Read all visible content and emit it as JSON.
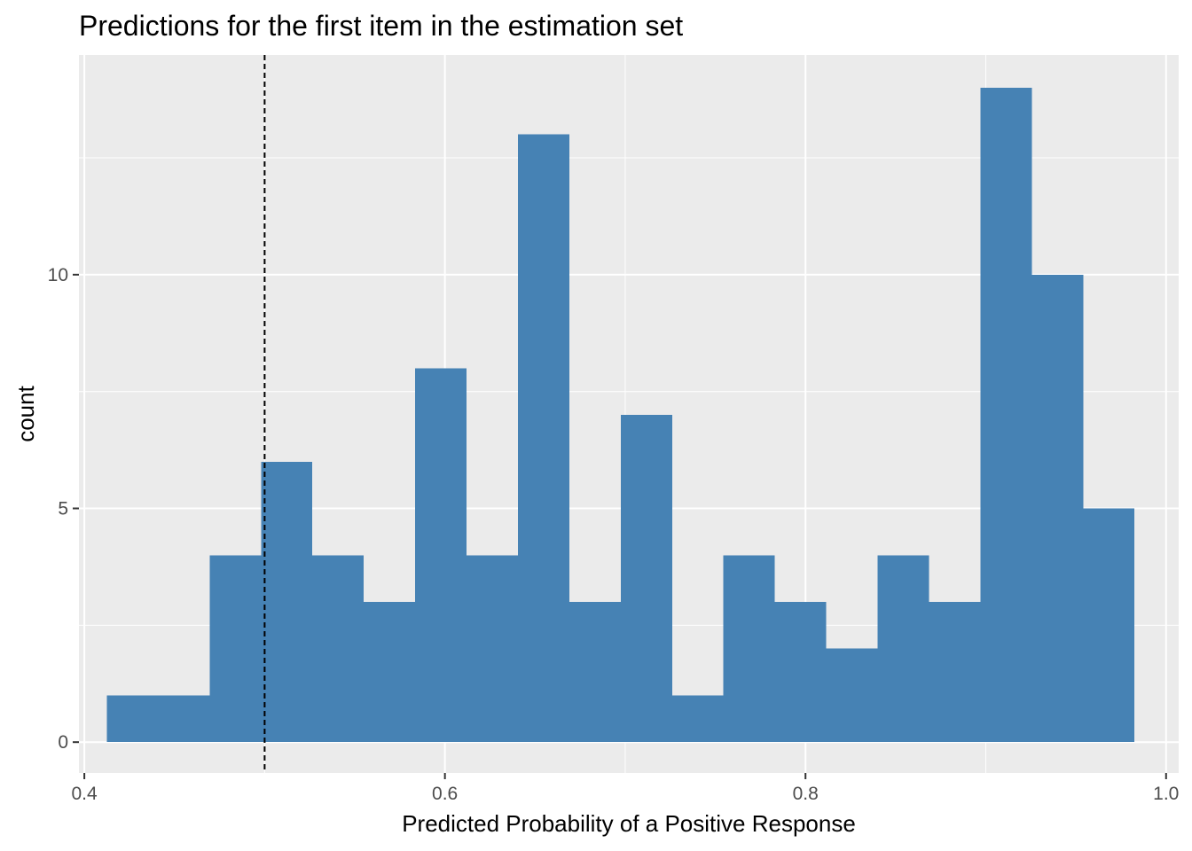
{
  "chart_data": {
    "type": "bar",
    "title": "Predictions for the first item in the estimation set",
    "xlabel": "Predicted Probability of a Positive Response",
    "ylabel": "count",
    "xlim": [
      0.397,
      1.007
    ],
    "ylim": [
      -0.66,
      14.7
    ],
    "x_ticks": [
      0.4,
      0.6,
      0.8,
      1.0
    ],
    "x_tick_labels": [
      "0.4",
      "0.6",
      "0.8",
      "1.0"
    ],
    "y_ticks": [
      0,
      5,
      10
    ],
    "y_tick_labels": [
      "0",
      "5",
      "10"
    ],
    "bins": [
      {
        "x0": 0.4125,
        "x1": 0.441,
        "count": 1
      },
      {
        "x0": 0.441,
        "x1": 0.4695,
        "count": 1
      },
      {
        "x0": 0.4695,
        "x1": 0.498,
        "count": 4
      },
      {
        "x0": 0.498,
        "x1": 0.5265,
        "count": 6
      },
      {
        "x0": 0.5265,
        "x1": 0.555,
        "count": 4
      },
      {
        "x0": 0.555,
        "x1": 0.5835,
        "count": 3
      },
      {
        "x0": 0.5835,
        "x1": 0.612,
        "count": 8
      },
      {
        "x0": 0.612,
        "x1": 0.6405,
        "count": 4
      },
      {
        "x0": 0.6405,
        "x1": 0.669,
        "count": 13
      },
      {
        "x0": 0.669,
        "x1": 0.6975,
        "count": 3
      },
      {
        "x0": 0.6975,
        "x1": 0.726,
        "count": 7
      },
      {
        "x0": 0.726,
        "x1": 0.7545,
        "count": 1
      },
      {
        "x0": 0.7545,
        "x1": 0.783,
        "count": 4
      },
      {
        "x0": 0.783,
        "x1": 0.8115,
        "count": 3
      },
      {
        "x0": 0.8115,
        "x1": 0.84,
        "count": 2
      },
      {
        "x0": 0.84,
        "x1": 0.8685,
        "count": 4
      },
      {
        "x0": 0.8685,
        "x1": 0.897,
        "count": 3
      },
      {
        "x0": 0.897,
        "x1": 0.9255,
        "count": 14
      },
      {
        "x0": 0.9255,
        "x1": 0.954,
        "count": 10
      },
      {
        "x0": 0.954,
        "x1": 0.9825,
        "count": 5
      }
    ],
    "reference_line": {
      "x": 0.5,
      "style": "dashed"
    },
    "grid": true,
    "legend": "none",
    "colors": {
      "bar": "#4682b4",
      "panel_background": "#ebebeb",
      "grid": "#ffffff",
      "reference_line": "#000000"
    }
  }
}
